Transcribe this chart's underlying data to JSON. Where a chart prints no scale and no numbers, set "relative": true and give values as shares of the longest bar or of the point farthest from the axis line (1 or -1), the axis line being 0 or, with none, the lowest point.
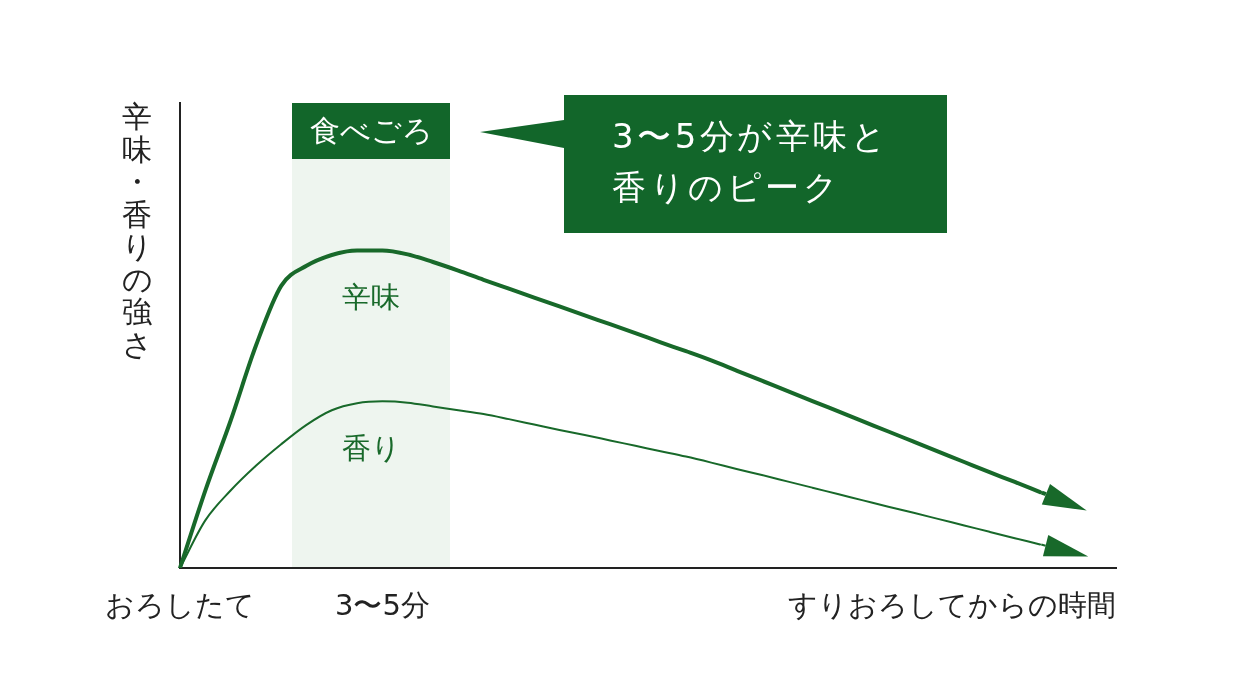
{
  "chart_data": {
    "type": "line",
    "ylabel": "辛味・香りの強さ",
    "xlabel": "すりおろしてからの時間",
    "relative": true,
    "categories": [
      "おろしたて",
      null,
      null,
      null,
      null,
      null,
      null,
      null,
      "3〜5分",
      null,
      null,
      null,
      null,
      null,
      null,
      null,
      null,
      null,
      null,
      null,
      null,
      null,
      null,
      null,
      null,
      null,
      null,
      null,
      null,
      null,
      null,
      null,
      null,
      null,
      null,
      null,
      null,
      null
    ],
    "series": [
      {
        "name": "辛味",
        "color": "#18692a",
        "values": [
          0,
          0.244,
          0.464,
          0.7,
          0.889,
          0.952,
          0.986,
          1,
          1,
          0.988,
          0.964,
          0.937,
          0.908,
          0.88,
          0.852,
          0.824,
          0.796,
          0.768,
          0.74,
          0.711,
          0.683,
          0.654,
          0.622,
          0.59,
          0.558,
          0.526,
          0.494,
          0.462,
          0.43,
          0.398,
          0.366,
          0.334,
          0.302,
          0.271,
          0.239,
          null,
          null,
          null
        ]
      },
      {
        "name": "香り",
        "color": "#18692a",
        "values": [
          0,
          0.15,
          0.244,
          0.322,
          0.39,
          0.451,
          0.497,
          0.519,
          0.525,
          0.521,
          0.509,
          0.497,
          0.485,
          0.469,
          0.452,
          0.435,
          0.419,
          0.402,
          0.385,
          0.368,
          0.351,
          0.332,
          0.312,
          0.293,
          0.273,
          0.253,
          0.233,
          0.213,
          0.193,
          0.174,
          0.154,
          0.134,
          0.114,
          0.094,
          0.074,
          null,
          null,
          null
        ]
      }
    ],
    "annotations": [
      "食べごろ",
      "3〜5分が辛味と香りのピーク"
    ],
    "grid": false,
    "legend": false,
    "marker": "none",
    "line_style": "solid"
  }
}
